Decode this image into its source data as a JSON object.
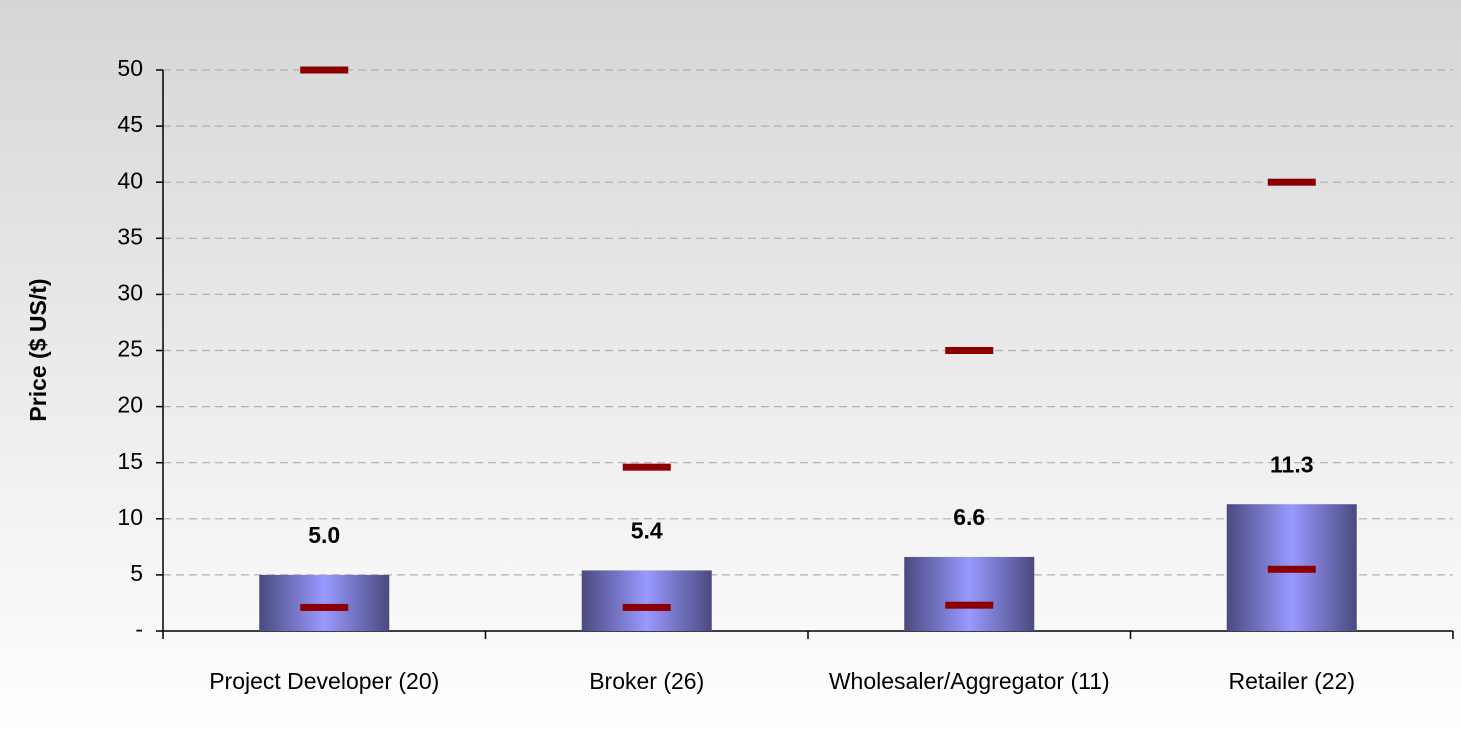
{
  "chart_data": {
    "type": "bar",
    "y_label": "Price ($ US/t)",
    "categories": [
      "Project Developer (20)",
      "Broker (26)",
      "Wholesaler/Aggregator (11)",
      "Retailer (22)"
    ],
    "values": [
      5.0,
      5.4,
      6.6,
      11.3
    ],
    "value_labels": [
      "5.0",
      "5.4",
      "6.6",
      "11.3"
    ],
    "high": [
      50,
      14.6,
      25,
      40
    ],
    "low": [
      2.1,
      2.1,
      2.3,
      5.5
    ],
    "color": "#9999ff",
    "marker_color": "#8b0000",
    "ylim": [
      0,
      50
    ],
    "yticks": [
      {
        "value": 0,
        "label": "-"
      },
      5,
      10,
      15,
      20,
      25,
      30,
      35,
      40,
      45,
      50
    ],
    "grid": true
  }
}
